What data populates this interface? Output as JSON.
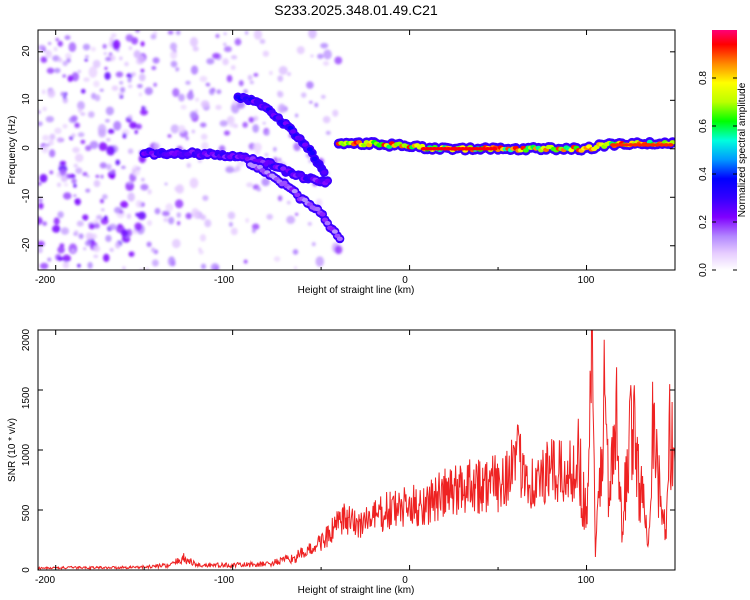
{
  "title": "S233.2025.348.01.49.C21",
  "colors": {
    "snr_line": "#ee2222",
    "background": "#ffffff",
    "colormap": [
      "#ffffff",
      "#e6ccff",
      "#b388ff",
      "#8000ff",
      "#3300ff",
      "#0000ff",
      "#0099ff",
      "#00ffdd",
      "#00ff00",
      "#bbff00",
      "#ffff00",
      "#ff8800",
      "#ff0000",
      "#ff0077"
    ]
  },
  "chart_data": [
    {
      "type": "heatmap",
      "xlabel": "Height of straight line (km)",
      "ylabel": "Frequency (Hz)",
      "xlim": [
        -210,
        150
      ],
      "ylim": [
        -25,
        24.5
      ],
      "xticks": [
        "-200",
        "-100",
        "0",
        "100"
      ],
      "yticks": [
        "-20",
        "-10",
        "0",
        "10",
        "20"
      ],
      "colorbar": {
        "label": "Normalized spectral amplitude",
        "range": [
          0,
          1
        ],
        "ticks": [
          "0.0",
          "0.2",
          "0.4",
          "0.6",
          "0.8"
        ]
      },
      "traces": [
        {
          "x": [
            -150,
            -120,
            -100,
            -80,
            -60,
            -45
          ],
          "y": [
            -1,
            -1,
            -1.5,
            -3,
            -6,
            -7
          ],
          "amplitude": 0.3
        },
        {
          "x": [
            -97,
            -85,
            -70,
            -55,
            -47
          ],
          "y": [
            10.5,
            9.5,
            5,
            -1,
            -6
          ],
          "amplitude": 0.35
        },
        {
          "x": [
            -90,
            -75,
            -62,
            -52,
            -45,
            -38
          ],
          "y": [
            -3,
            -6,
            -10,
            -12.5,
            -16,
            -19
          ],
          "amplitude": 0.2
        },
        {
          "x": [
            -40,
            -20,
            0,
            20,
            40,
            60,
            80,
            100,
            110,
            130,
            150
          ],
          "y": [
            1,
            1,
            0.5,
            0,
            0,
            0,
            0,
            0,
            0.8,
            1,
            1
          ],
          "amplitude": 0.85
        }
      ]
    },
    {
      "type": "line",
      "xlabel": "Height of straight line (km)",
      "ylabel": "SNR (10 * v/v)",
      "xlim": [
        -210,
        150
      ],
      "ylim": [
        0,
        2000
      ],
      "xticks": [
        "-200",
        "-100",
        "0",
        "100"
      ],
      "yticks": [
        "0",
        "500",
        "1000",
        "1500",
        "2000"
      ],
      "series": [
        {
          "x": [
            -210,
            -190,
            -170,
            -150,
            -135,
            -128,
            -120,
            -100,
            -80,
            -65,
            -55,
            -45,
            -38,
            -30,
            -20,
            -10,
            0,
            10,
            20,
            30,
            35,
            40,
            50,
            60,
            65,
            70,
            80,
            90,
            95,
            100,
            103,
            105,
            110,
            113,
            117,
            120,
            125,
            130,
            135,
            138,
            140,
            145,
            147,
            150
          ],
          "y": [
            15,
            20,
            20,
            25,
            40,
            100,
            40,
            40,
            50,
            100,
            180,
            300,
            420,
            380,
            440,
            500,
            520,
            560,
            630,
            680,
            760,
            700,
            720,
            900,
            880,
            700,
            820,
            780,
            960,
            420,
            2000,
            100,
            1420,
            600,
            1200,
            300,
            1320,
            700,
            300,
            1500,
            800,
            250,
            1080,
            900
          ]
        }
      ]
    }
  ]
}
